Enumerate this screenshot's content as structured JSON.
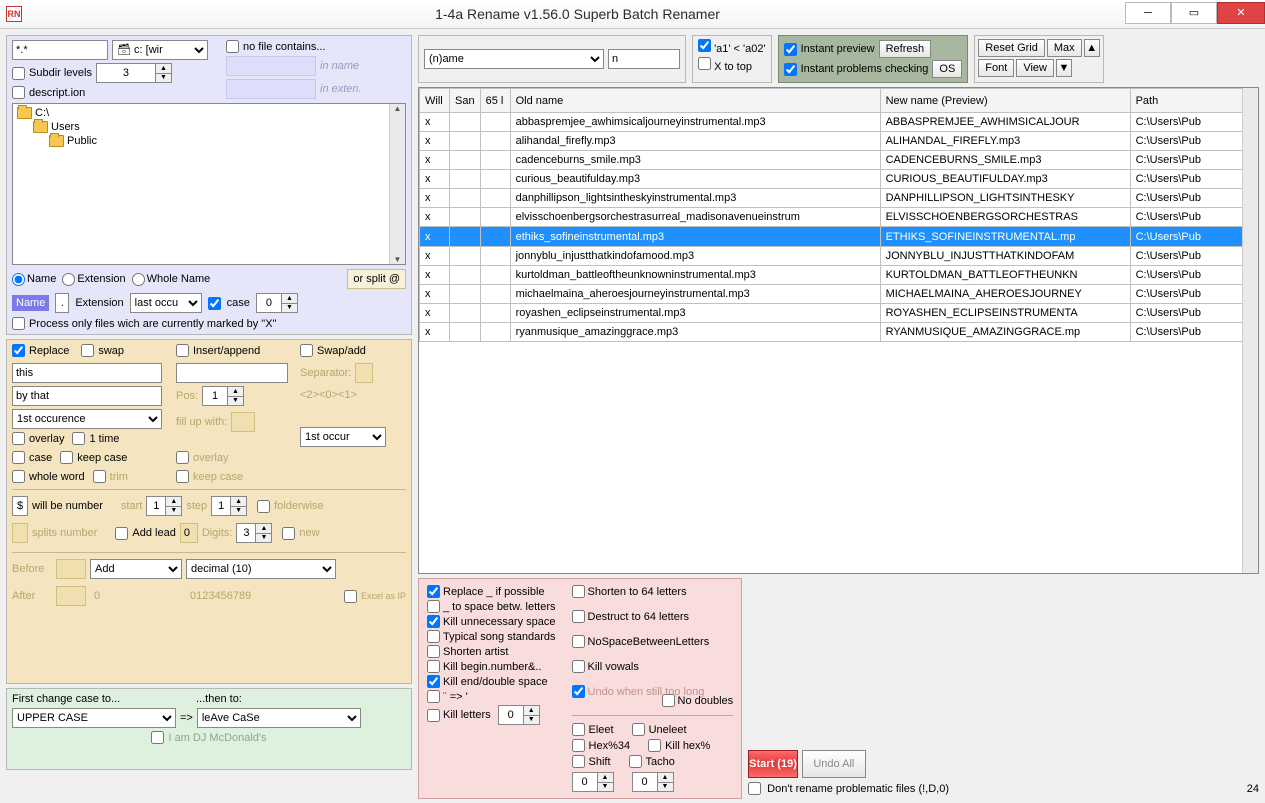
{
  "title": "1-4a Rename v1.56.0 Superb Batch Renamer",
  "icon_text": "RN",
  "filter": {
    "pattern": "*.*",
    "drive": "🗃 c: [wir",
    "subdir_lbl": "Subdir levels",
    "subdir_val": "3",
    "descript_lbl": "descript.ion",
    "nofilecontains_lbl": "no file contains...",
    "inname": "in name",
    "inexten": "in exten."
  },
  "tree": [
    "C:\\",
    "Users",
    "Public"
  ],
  "scope": {
    "name": "Name",
    "ext": "Extension",
    "whole": "Whole Name",
    "orsplit": "or split @",
    "name_hl": "Name",
    "dot": ".",
    "ext_lbl": "Extension",
    "occur": "last occu",
    "case": "case",
    "split_val": "0",
    "process_lbl": "Process only files wich are currently marked by \"X\""
  },
  "replace": {
    "replace_lbl": "Replace",
    "swap_lbl": "swap",
    "this_val": "this",
    "by_val": "by that",
    "occ": "1st occurence",
    "overlay": "overlay",
    "onetime": "1 time",
    "case": "case",
    "keepcase": "keep case",
    "whole": "whole word",
    "trim": "trim",
    "insert_lbl": "Insert/append",
    "pos": "Pos:",
    "pos_val": "1",
    "fill": "fill up with:",
    "overlay2": "overlay",
    "keep2": "keep case",
    "swapadd_lbl": "Swap/add",
    "sep": "Separator:",
    "codes": "<2><0><1>",
    "occ2": "1st occur",
    "numrow_sym": "$",
    "numrow_lbl": "will be number",
    "start": "start",
    "start_v": "1",
    "step": "step",
    "step_v": "1",
    "folderwise": "folderwise",
    "splits": "splits number",
    "addlead": "Add lead",
    "lead_v": "0",
    "digits": "Digits:",
    "digits_v": "3",
    "new": "new",
    "before": "Before",
    "after": "After",
    "add": "Add",
    "decimal": "decimal (10)",
    "zero": "0",
    "chars": "0123456789",
    "excel": "Excel as IP"
  },
  "casep": {
    "first": "First change case to...",
    "then": "...then to:",
    "upper": "UPPER CASE",
    "arrow": "=>",
    "leave": "leAve CaSe",
    "dj": "I am DJ McDonald's"
  },
  "topright": {
    "namefield": "(n)ame",
    "nval": "n",
    "a1": "'a1' < 'a02'",
    "xtop": "X to top",
    "instprev": "Instant preview",
    "refresh": "Refresh",
    "instprob": "Instant problems checking",
    "os": "OS",
    "reset": "Reset Grid",
    "max": "Max",
    "font": "Font",
    "view": "View"
  },
  "cols": {
    "will": "Will",
    "san": "San",
    "n65": "65 l",
    "old": "Old name",
    "new": "New name (Preview)",
    "path": "Path"
  },
  "rows": [
    {
      "w": "x",
      "o": "abbaspremjee_awhimsicaljourneyinstrumental.mp3",
      "n": "ABBASPREMJEE_AWHIMSICALJOUR",
      "p": "C:\\Users\\Pub"
    },
    {
      "w": "x",
      "o": "alihandal_firefly.mp3",
      "n": "ALIHANDAL_FIREFLY.mp3",
      "p": "C:\\Users\\Pub"
    },
    {
      "w": "x",
      "o": "cadenceburns_smile.mp3",
      "n": "CADENCEBURNS_SMILE.mp3",
      "p": "C:\\Users\\Pub"
    },
    {
      "w": "x",
      "o": "curious_beautifulday.mp3",
      "n": "CURIOUS_BEAUTIFULDAY.mp3",
      "p": "C:\\Users\\Pub"
    },
    {
      "w": "x",
      "o": "danphillipson_lightsintheskyinstrumental.mp3",
      "n": "DANPHILLIPSON_LIGHTSINTHESKY",
      "p": "C:\\Users\\Pub"
    },
    {
      "w": "x",
      "o": "elvisschoenbergsorchestrasurreal_madisonavenueinstrum",
      "n": "ELVISSCHOENBERGSORCHESTRAS",
      "p": "C:\\Users\\Pub"
    },
    {
      "w": "x",
      "o": "ethiks_sofineinstrumental.mp3",
      "n": "ETHIKS_SOFINEINSTRUMENTAL.mp",
      "p": "C:\\Users\\Pub",
      "sel": true
    },
    {
      "w": "x",
      "o": "jonnyblu_injustthatkindofamood.mp3",
      "n": "JONNYBLU_INJUSTTHATKINDOFAM",
      "p": "C:\\Users\\Pub"
    },
    {
      "w": "x",
      "o": "kurtoldman_battleoftheunknowninstrumental.mp3",
      "n": "KURTOLDMAN_BATTLEOFTHEUNKN",
      "p": "C:\\Users\\Pub"
    },
    {
      "w": "x",
      "o": "michaelmaina_aheroesjourneyinstrumental.mp3",
      "n": "MICHAELMAINA_AHEROESJOURNEY",
      "p": "C:\\Users\\Pub"
    },
    {
      "w": "x",
      "o": "royashen_eclipseinstrumental.mp3",
      "n": "ROYASHEN_ECLIPSEINSTRUMENTA",
      "p": "C:\\Users\\Pub"
    },
    {
      "w": "x",
      "o": "ryanmusique_amazinggrace.mp3",
      "n": "RYANMUSIQUE_AMAZINGGRACE.mp",
      "p": "C:\\Users\\Pub"
    }
  ],
  "pink": {
    "c1": [
      "Replace _ if possible",
      "_ to space betw. letters",
      "Kill unnecessary space",
      "Typical song standards",
      "Shorten artist",
      "Kill begin.number&..",
      "Kill end/double space",
      "¨ => '",
      "Kill letters"
    ],
    "c1_chk": [
      true,
      false,
      true,
      false,
      false,
      false,
      true,
      false,
      false
    ],
    "c2": [
      "Shorten to 64 letters",
      "Destruct to 64 letters",
      "NoSpaceBetweenLetters",
      "Kill vowals",
      "Undo when still too long"
    ],
    "c2_chk": [
      false,
      false,
      false,
      false,
      true
    ],
    "nodoubles": "No doubles",
    "c3": [
      "Eleet",
      "Hex%34",
      "Shift"
    ],
    "c3b": [
      "Uneleet",
      "Kill hex%",
      "Tacho"
    ],
    "kill_v": "0",
    "shift_v": "0",
    "tacho_v": "0"
  },
  "start": {
    "btn": "Start (19)",
    "undo": "Undo All",
    "dont": "Don't rename problematic files (!,D,0)",
    "count": "24"
  }
}
